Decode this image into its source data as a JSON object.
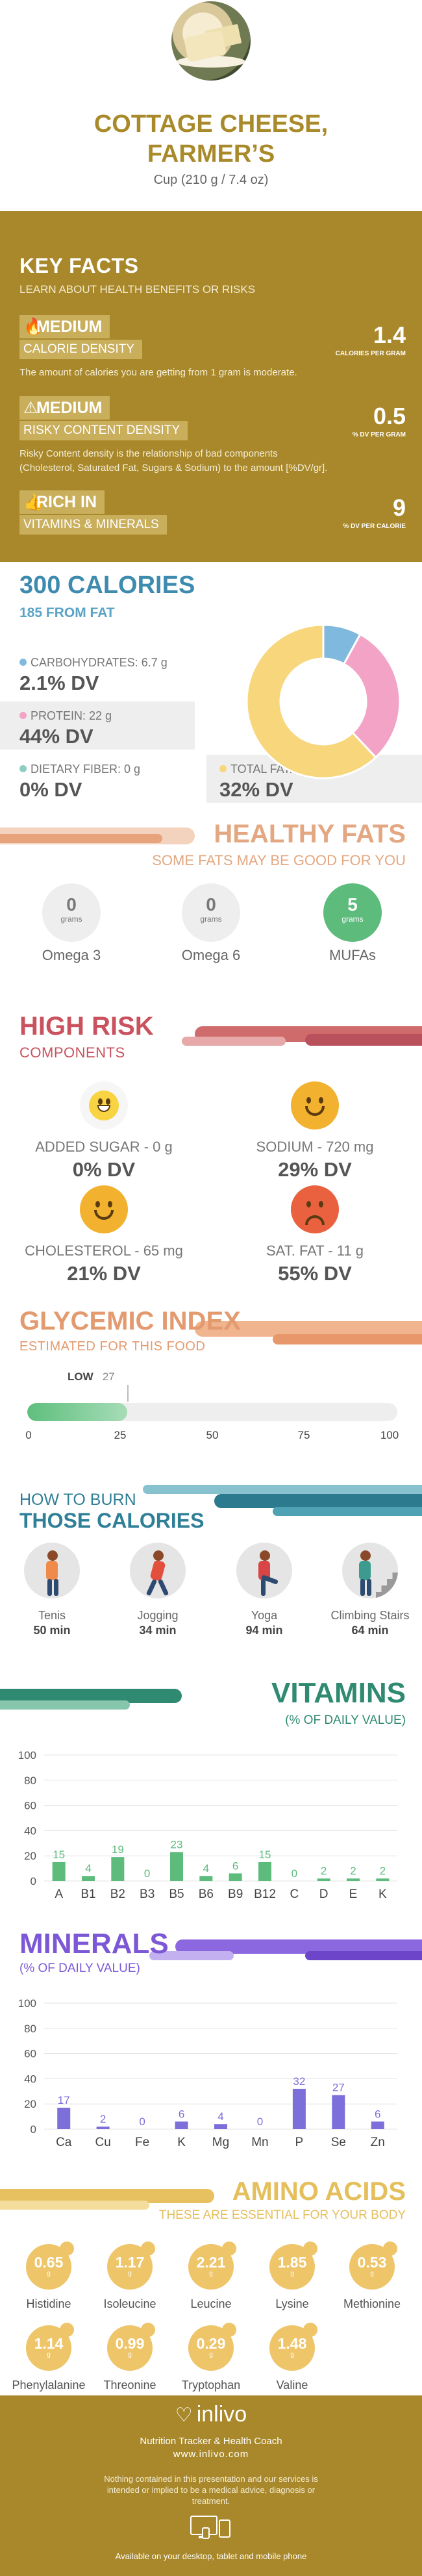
{
  "header": {
    "title_line1": "COTTAGE CHEESE,",
    "title_line2": "FARMER’S",
    "serving": "Cup (210 g / 7.4 oz)"
  },
  "key_facts": {
    "title": "KEY FACTS",
    "subtitle": "LEARN ABOUT HEALTH BENEFITS OR RISKS",
    "calorie_density": {
      "level": "MEDIUM",
      "label": "CALORIE DENSITY",
      "value": "1.4",
      "unit": "CALORIES PER GRAM",
      "description": "The amount of calories you are getting from 1 gram is moderate."
    },
    "risky_density": {
      "level": "MEDIUM",
      "label": "RISKY CONTENT DENSITY",
      "value": "0.5",
      "unit": "% DV PER GRAM",
      "description_line1": "Risky Content density is the relationship of bad components",
      "description_line2": "(Cholesterol, Saturated Fat, Sugars & Sodium) to the amount [%DV/gr]."
    },
    "vitamins": {
      "level": "RICH  IN",
      "label": "VITAMINS & MINERALS",
      "value": "9",
      "unit": "% DV PER CALORIE"
    }
  },
  "calories": {
    "title": "300 CALORIES",
    "subtitle": "185 FROM FAT",
    "carbs": {
      "label": "CARBOHYDRATES: 6.7 g",
      "dv": "2.1% DV",
      "color": "#7fb9dd",
      "pct": 8
    },
    "protein": {
      "label": "PROTEIN: 22 g",
      "dv": "44% DV",
      "color": "#f2a3c6",
      "pct": 30
    },
    "fiber": {
      "label": "DIETARY FIBER: 0 g",
      "dv": "0% DV",
      "color": "#8ccfc0"
    },
    "fat": {
      "label": "TOTAL FAT: 21 g",
      "dv": "32% DV",
      "color": "#f8d67c",
      "pct": 62
    }
  },
  "healthy_fats": {
    "title": "HEALTHY FATS",
    "subtitle": "SOME FATS MAY BE GOOD FOR YOU",
    "unit": "grams",
    "items": [
      {
        "value": "0",
        "name": "Omega 3"
      },
      {
        "value": "0",
        "name": "Omega 6"
      },
      {
        "value": "5",
        "name": "MUFAs"
      }
    ]
  },
  "high_risk": {
    "title": "HIGH RISK",
    "subtitle": "COMPONENTS",
    "items": [
      {
        "name": "ADDED SUGAR - 0 g",
        "dv": "0% DV",
        "face": "grin"
      },
      {
        "name": "SODIUM - 720 mg",
        "dv": "29% DV",
        "face": "happy"
      },
      {
        "name": "CHOLESTEROL - 65 mg",
        "dv": "21% DV",
        "face": "happy"
      },
      {
        "name": "SAT. FAT - 11 g",
        "dv": "55% DV",
        "face": "sad"
      }
    ]
  },
  "glycemic": {
    "title": "GLYCEMIC INDEX",
    "subtitle": "ESTIMATED FOR THIS FOOD",
    "level": "LOW",
    "value": "27",
    "fill_pct": 27,
    "axis": [
      "0",
      "25",
      "50",
      "75",
      "100"
    ]
  },
  "burn": {
    "title_line1": "HOW TO BURN",
    "title_line2": "THOSE CALORIES",
    "items": [
      {
        "name": "Tenis",
        "minutes": "50 min",
        "icon": "tennis-icon",
        "color": "#f08a4b"
      },
      {
        "name": "Jogging",
        "minutes": "34 min",
        "icon": "jogging-icon",
        "color": "#e2503d"
      },
      {
        "name": "Yoga",
        "minutes": "94 min",
        "icon": "yoga-icon",
        "color": "#d94545"
      },
      {
        "name": "Climbing Stairs",
        "minutes": "64 min",
        "icon": "stairs-icon",
        "color": "#3c9a8e"
      }
    ]
  },
  "vitamins": {
    "title": "VITAMINS",
    "subtitle": "(% OF DAILY VALUE)",
    "chart_data": {
      "type": "bar",
      "categories": [
        "A",
        "B1",
        "B2",
        "B3",
        "B5",
        "B6",
        "B9",
        "B12",
        "C",
        "D",
        "E",
        "K"
      ],
      "values": [
        15,
        4,
        19,
        0,
        23,
        4,
        6,
        15,
        0,
        2,
        2,
        2
      ],
      "ylim": [
        0,
        100
      ],
      "yticks": [
        "0",
        "20",
        "40",
        "60",
        "80",
        "100"
      ],
      "grid": true,
      "color": "#5dbb7c"
    }
  },
  "minerals": {
    "title": "MINERALS",
    "subtitle": "(% OF DAILY VALUE)",
    "chart_data": {
      "type": "bar",
      "categories": [
        "Ca",
        "Cu",
        "Fe",
        "K",
        "Mg",
        "Mn",
        "P",
        "Se",
        "Zn"
      ],
      "values": [
        17,
        2,
        0,
        6,
        4,
        0,
        32,
        27,
        6
      ],
      "ylim": [
        0,
        100
      ],
      "yticks": [
        "0",
        "20",
        "40",
        "60",
        "80",
        "100"
      ],
      "grid": true,
      "color": "#7c6fd9"
    }
  },
  "amino": {
    "title": "AMINO ACIDS",
    "subtitle": "THESE ARE ESSENTIAL FOR YOUR BODY",
    "unit": "g",
    "items": [
      {
        "value": "0.65",
        "name": "Histidine"
      },
      {
        "value": "1.17",
        "name": "Isoleucine"
      },
      {
        "value": "2.21",
        "name": "Leucine"
      },
      {
        "value": "1.85",
        "name": "Lysine"
      },
      {
        "value": "0.53",
        "name": "Methionine"
      },
      {
        "value": "1.14",
        "name": "Phenylalanine"
      },
      {
        "value": "0.99",
        "name": "Threonine"
      },
      {
        "value": "0.29",
        "name": "Tryptophan"
      },
      {
        "value": "1.48",
        "name": "Valine"
      }
    ]
  },
  "footer": {
    "brand": "inlivo",
    "tagline": "Nutrition Tracker & Health Coach",
    "url": "www.inlivo.com",
    "disclaimer": "Nothing contained in this presentation and our services is intended or implied to be a medical advice, diagnosis or treatment.",
    "available": "Available on your desktop, tablet and mobile phone"
  }
}
